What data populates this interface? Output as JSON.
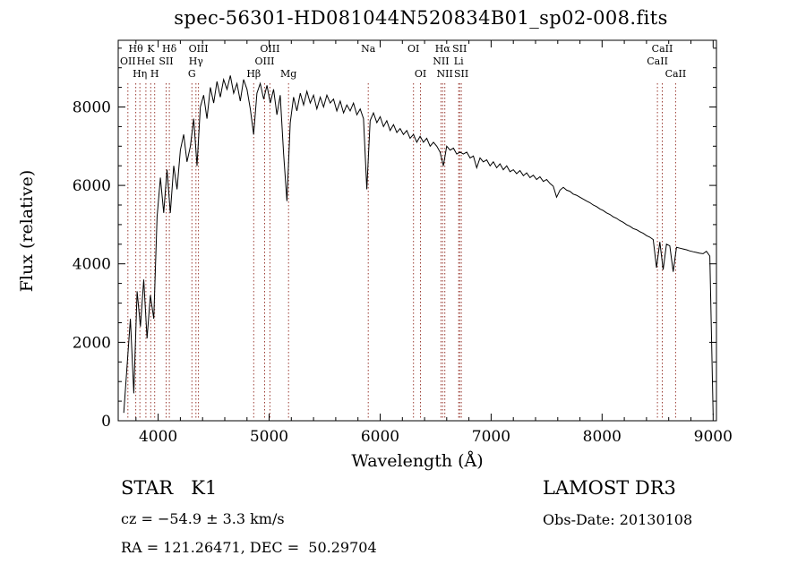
{
  "title": "spec-56301-HD081044N520834B01_sp02-008.fits",
  "chart_data": {
    "type": "line",
    "title": "spec-56301-HD081044N520834B01_sp02-008.fits",
    "xlabel": "Wavelength (Å)",
    "ylabel": "Flux (relative)",
    "xlim": [
      3640,
      9030
    ],
    "ylim": [
      0,
      9700
    ],
    "xticks": [
      4000,
      5000,
      6000,
      7000,
      8000,
      9000
    ],
    "yticks": [
      0,
      2000,
      4000,
      6000,
      8000
    ],
    "x_minor_step": 200,
    "y_minor_step": 500,
    "grid": false,
    "line_color": "#000000",
    "marker_color": "#9a3b32",
    "x_start": 3690,
    "x_step": 30,
    "flux": [
      200,
      1400,
      2600,
      700,
      3300,
      2400,
      3600,
      2100,
      3200,
      2600,
      5200,
      6200,
      5300,
      6400,
      5300,
      6500,
      5900,
      6900,
      7300,
      6600,
      7000,
      7700,
      6500,
      8000,
      8300,
      7700,
      8500,
      8100,
      8650,
      8250,
      8700,
      8450,
      8800,
      8350,
      8600,
      8150,
      8700,
      8450,
      7950,
      7300,
      8350,
      8600,
      8200,
      8550,
      8100,
      8450,
      7800,
      8300,
      6800,
      5600,
      7600,
      8250,
      7900,
      8350,
      8050,
      8400,
      8100,
      8300,
      7950,
      8250,
      8000,
      8300,
      8100,
      8200,
      7900,
      8150,
      7850,
      8050,
      7900,
      8100,
      7800,
      7950,
      7700,
      5900,
      7650,
      7850,
      7600,
      7750,
      7500,
      7650,
      7400,
      7550,
      7350,
      7450,
      7300,
      7400,
      7200,
      7300,
      7100,
      7250,
      7100,
      7200,
      7000,
      7100,
      7000,
      6850,
      6500,
      7000,
      6900,
      6950,
      6800,
      6850,
      6800,
      6850,
      6700,
      6750,
      6450,
      6700,
      6600,
      6650,
      6500,
      6600,
      6450,
      6550,
      6400,
      6500,
      6350,
      6400,
      6300,
      6380,
      6250,
      6320,
      6200,
      6260,
      6150,
      6220,
      6100,
      6150,
      6050,
      5980,
      5700,
      5880,
      5950,
      5880,
      5850,
      5780,
      5750,
      5700,
      5650,
      5600,
      5560,
      5500,
      5460,
      5400,
      5360,
      5300,
      5260,
      5200,
      5160,
      5100,
      5060,
      5000,
      4960,
      4900,
      4870,
      4820,
      4780,
      4720,
      4680,
      4620,
      3900,
      4560,
      3850,
      4500,
      4460,
      3800,
      4420,
      4400,
      4380,
      4360,
      4330,
      4310,
      4290,
      4270,
      4260,
      4320,
      4200,
      150
    ],
    "spectral_lines": [
      3727,
      3798,
      3835,
      3889,
      3933,
      3968,
      4072,
      4101,
      4304,
      4340,
      4363,
      4861,
      4959,
      5007,
      5175,
      5893,
      6300,
      6363,
      6548,
      6563,
      6583,
      6708,
      6716,
      6731,
      8498,
      8542,
      8662
    ],
    "line_labels": {
      "row1": [
        {
          "wl": 3798,
          "text": "Hθ"
        },
        {
          "wl": 3933,
          "text": "K"
        },
        {
          "wl": 4101,
          "text": "Hδ"
        },
        {
          "wl": 4363,
          "text": "OIII"
        },
        {
          "wl": 5007,
          "text": "OIII"
        },
        {
          "wl": 5893,
          "text": "Na"
        },
        {
          "wl": 6300,
          "text": "OI"
        },
        {
          "wl": 6563,
          "text": "Hα"
        },
        {
          "wl": 6716,
          "text": "SII"
        },
        {
          "wl": 8542,
          "text": "CaII"
        }
      ],
      "row2": [
        {
          "wl": 3727,
          "text": "OII"
        },
        {
          "wl": 3889,
          "text": "HeI"
        },
        {
          "wl": 4072,
          "text": "SII"
        },
        {
          "wl": 4340,
          "text": "Hγ"
        },
        {
          "wl": 4959,
          "text": "OIII"
        },
        {
          "wl": 6548,
          "text": "NII"
        },
        {
          "wl": 6708,
          "text": "Li"
        },
        {
          "wl": 8498,
          "text": "CaII"
        }
      ],
      "row3": [
        {
          "wl": 3835,
          "text": "Hη"
        },
        {
          "wl": 3968,
          "text": "H"
        },
        {
          "wl": 4304,
          "text": "G"
        },
        {
          "wl": 4861,
          "text": "Hβ"
        },
        {
          "wl": 5175,
          "text": "Mg"
        },
        {
          "wl": 6363,
          "text": "OI"
        },
        {
          "wl": 6583,
          "text": "NII"
        },
        {
          "wl": 6731,
          "text": "SII"
        },
        {
          "wl": 8662,
          "text": "CaII"
        }
      ]
    }
  },
  "footer": {
    "class_label": "STAR   K1",
    "survey": "LAMOST DR3",
    "cz": "cz = −54.9 ± 3.3 km/s",
    "obs_date": "Obs-Date: 20130108",
    "radec": "RA = 121.26471, DEC =  50.29704"
  }
}
